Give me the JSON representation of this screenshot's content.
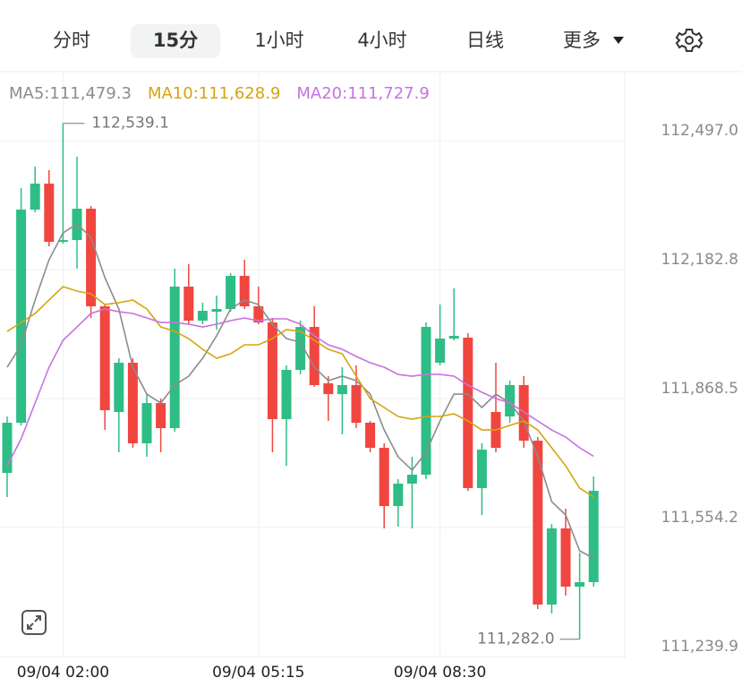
{
  "tabs": [
    "分时",
    "15分",
    "1小时",
    "4小时",
    "日线",
    "更多"
  ],
  "active_tab": 1,
  "chart_data": {
    "type": "candlestick",
    "up_color": "#2ebd85",
    "down_color": "#f0463f",
    "categories": [
      null,
      null,
      null,
      null,
      "09/04 02:00",
      null,
      null,
      null,
      null,
      null,
      null,
      null,
      null,
      null,
      null,
      null,
      null,
      null,
      "09/04 05:15",
      null,
      null,
      null,
      null,
      null,
      null,
      null,
      null,
      null,
      null,
      null,
      null,
      "09/04 08:30",
      null,
      null,
      null,
      null,
      null,
      null,
      null,
      null,
      null,
      null,
      null
    ],
    "open": [
      111687.3,
      111809.5,
      112328.9,
      112392.2,
      112250.4,
      112254.7,
      112331.1,
      112093.2,
      111835.7,
      111955.7,
      111759.3,
      111857.5,
      111796.4,
      112141.2,
      112058.3,
      112080.1,
      112086.7,
      112167.4,
      112093.2,
      112053.9,
      111818.2,
      111938.3,
      112043,
      111905.5,
      111879.3,
      111901.2,
      111809.5,
      111748.4,
      111606.5,
      111661.1,
      111682.9,
      111955.7,
      112014.6,
      112016.8,
      111650.2,
      111835.7,
      111824.8,
      111901.2,
      111765.8,
      111366.4,
      111551.9,
      111410.1,
      111421
    ],
    "high": [
      111824.8,
      112381.3,
      112433.7,
      112425,
      112539.1,
      112457.7,
      112337.7,
      112097.6,
      111966.6,
      111966.6,
      111879.3,
      111868.4,
      112184.9,
      112195.8,
      112102,
      112119.4,
      112174,
      112206.7,
      112141.2,
      112064.8,
      111949.2,
      112058.3,
      112093.2,
      111923,
      111944.8,
      111949.2,
      111813.8,
      111759.3,
      111672,
      111726.5,
      112053.9,
      112097.6,
      112136.9,
      112027.7,
      111759.3,
      111955.7,
      111912.1,
      111923,
      111774.6,
      111562.8,
      111599.9,
      111493,
      111678.5
    ],
    "low": [
      111628.3,
      111802.9,
      112322.4,
      112239.5,
      112246,
      112184.9,
      112064.8,
      111792,
      111737.5,
      111748.4,
      111726.5,
      111737.5,
      111787.7,
      112049.6,
      112049.6,
      112036.5,
      112080.1,
      112086.7,
      112049.6,
      111737.5,
      111704.7,
      111927.3,
      111896.8,
      111813.8,
      111781.1,
      111796.4,
      111737.5,
      111551.9,
      111556.3,
      111551.9,
      111672,
      111949.2,
      112010.3,
      111643.6,
      111584.7,
      111737.5,
      111809.5,
      111748.4,
      111355.5,
      111344.6,
      111388.2,
      111282,
      111410.1
    ],
    "close": [
      111809.5,
      112328.9,
      112392.2,
      112250.4,
      112254.7,
      112331.1,
      112093.2,
      111840,
      111955.7,
      111759.3,
      111857.5,
      111796.4,
      112141.2,
      112058.3,
      112082.3,
      112086.7,
      112167.4,
      112093.2,
      112053.9,
      111818.2,
      111938.3,
      112043,
      111901.2,
      111879.3,
      111901.2,
      111809.5,
      111748.4,
      111606.5,
      111661.1,
      111682.9,
      112043,
      112014.6,
      112021.2,
      111650.2,
      111744,
      111748.4,
      111901.2,
      111765.8,
      111366.4,
      111551.9,
      111410.1,
      111421,
      111643.6
    ],
    "series": [
      {
        "name": "MA5:111,479.3",
        "color": "#8c8c8c",
        "values": [
          111944.8,
          111999.4,
          112108.5,
          112206.7,
          112272.2,
          112294,
          112261.3,
          112163.1,
          112086.7,
          111944.8,
          111879.3,
          111857.5,
          111901.2,
          111923,
          111966.6,
          112021.2,
          112086.7,
          112108.5,
          112097.6,
          112049.6,
          112014.6,
          112005.9,
          111944.8,
          111912.1,
          111923,
          111912.1,
          111879.3,
          111792,
          111726.5,
          111693.8,
          111737.5,
          111813.8,
          111879.3,
          111879.3,
          111846.6,
          111879.3,
          111857.5,
          111813.8,
          111726.5,
          111617.4,
          111584.7,
          111497.4,
          111479.3
        ]
      },
      {
        "name": "MA10:111,628.9",
        "color": "#d6a40e",
        "values": [
          112032.1,
          112053.9,
          112075.8,
          112108.5,
          112141.2,
          112130.3,
          112123.8,
          112097.6,
          112102,
          112108.5,
          112086.7,
          112043,
          112032.1,
          112014.6,
          111988.5,
          111966.6,
          111977.5,
          111999.4,
          111999.4,
          112014.6,
          112036.5,
          112032.1,
          112010.3,
          111988.5,
          111977.5,
          111923,
          111868.4,
          111846.6,
          111824.8,
          111818.2,
          111824.8,
          111824.8,
          111831.3,
          111813.8,
          111792,
          111792,
          111802.9,
          111813.8,
          111792,
          111748.4,
          111704.7,
          111650.2,
          111628.9
        ]
      },
      {
        "name": "MA20:111,727.9",
        "color": "#c772e2",
        "values": [
          111704.7,
          111770.2,
          111857.5,
          111944.8,
          112010.3,
          112043,
          112075.8,
          112086.7,
          112080.1,
          112075.8,
          112064.8,
          112053.9,
          112053.9,
          112049.6,
          112043,
          112049.6,
          112058.3,
          112064.8,
          112058.3,
          112062.7,
          112062.7,
          112049.6,
          112021.2,
          111999.4,
          111988.5,
          111971,
          111955.7,
          111944.8,
          111927.3,
          111923,
          111927.3,
          111927.3,
          111923,
          111901.2,
          111883.7,
          111868.4,
          111857.5,
          111835.7,
          111813.8,
          111792,
          111774.6,
          111748.4,
          111727.9
        ]
      }
    ],
    "max_label": {
      "value": 112539.1,
      "label": "112,539.1"
    },
    "min_label": {
      "value": 111282.0,
      "label": "111,282.0"
    },
    "ylim": [
      111235.5,
      112665.1
    ],
    "yticks": [
      {
        "value": 112497.0,
        "label": "112,497.0"
      },
      {
        "value": 112182.8,
        "label": "112,182.8"
      },
      {
        "value": 111868.5,
        "label": "111,868.5"
      },
      {
        "value": 111554.2,
        "label": "111,554.2"
      },
      {
        "value": 111239.9,
        "label": "111,239.9"
      }
    ],
    "grid": true
  }
}
